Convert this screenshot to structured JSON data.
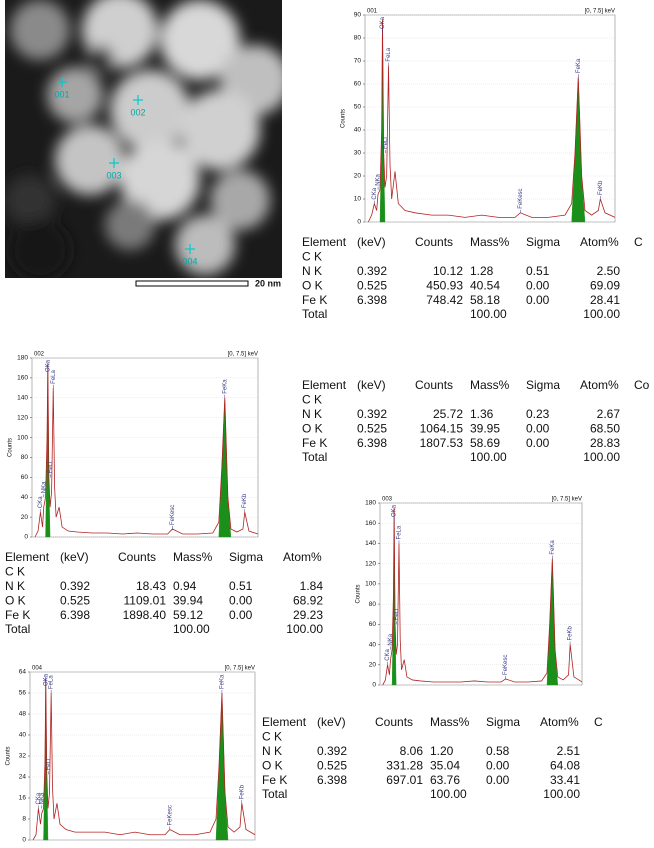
{
  "image": {
    "markers": [
      {
        "label": "001"
      },
      {
        "label": "002"
      },
      {
        "label": "003"
      },
      {
        "label": "004"
      }
    ],
    "scale_label": "20 nm"
  },
  "chart_data": [
    {
      "type": "line",
      "title": "001",
      "range_label": "[0, 7.5] keV",
      "y_label": "Counts",
      "xlim": [
        0,
        7.5
      ],
      "ylim": [
        0,
        90
      ],
      "yticks": [
        0,
        10,
        20,
        30,
        40,
        50,
        60,
        70,
        80,
        90
      ],
      "grid": true,
      "series": [
        {
          "color": "#1a8f1a",
          "fill": true,
          "x": [
            0.45,
            0.5,
            0.525,
            0.56,
            0.6,
            3.0,
            6.2,
            6.3,
            6.398,
            6.5,
            6.6
          ],
          "values": [
            0,
            40,
            88,
            30,
            0,
            null,
            0,
            30,
            63,
            20,
            0
          ]
        },
        {
          "color": "#b22222",
          "fill": false,
          "x": [
            0.1,
            0.2,
            0.28,
            0.35,
            0.39,
            0.45,
            0.5,
            0.525,
            0.56,
            0.6,
            0.65,
            0.705,
            0.75,
            0.8,
            0.9,
            1.0,
            1.2,
            1.5,
            2.0,
            2.5,
            3.0,
            3.5,
            4.0,
            4.5,
            4.66,
            5.0,
            5.5,
            6.0,
            6.2,
            6.3,
            6.398,
            6.5,
            6.6,
            6.8,
            7.0,
            7.06,
            7.2,
            7.5
          ],
          "values": [
            0,
            3,
            8,
            5,
            12,
            14,
            40,
            88,
            30,
            15,
            20,
            68,
            25,
            10,
            22,
            8,
            5,
            4,
            3,
            3,
            2,
            3,
            2,
            2,
            4,
            2,
            2,
            3,
            8,
            30,
            63,
            20,
            5,
            3,
            5,
            10,
            4,
            2
          ]
        }
      ],
      "annotations": [
        {
          "text": "CKa",
          "x": 0.277
        },
        {
          "text": "NKa",
          "x": 0.392
        },
        {
          "text": "OKa",
          "x": 0.525
        },
        {
          "text": "FeLl",
          "x": 0.615
        },
        {
          "text": "FeLa",
          "x": 0.705
        },
        {
          "text": "FeKesc",
          "x": 4.66
        },
        {
          "text": "FeKa",
          "x": 6.398
        },
        {
          "text": "FeKb",
          "x": 7.058
        }
      ]
    },
    {
      "type": "line",
      "title": "002",
      "range_label": "[0, 7.5] keV",
      "y_label": "Counts",
      "xlim": [
        0,
        7.5
      ],
      "ylim": [
        0,
        180
      ],
      "yticks": [
        0,
        20,
        40,
        60,
        80,
        100,
        120,
        140,
        160,
        180
      ],
      "grid": true,
      "series": [
        {
          "color": "#1a8f1a",
          "fill": true,
          "x": [
            0.45,
            0.5,
            0.525,
            0.56,
            0.6,
            3.0,
            6.2,
            6.3,
            6.398,
            6.5,
            6.6
          ],
          "values": [
            0,
            100,
            175,
            60,
            0,
            null,
            0,
            70,
            140,
            40,
            0
          ]
        },
        {
          "color": "#b22222",
          "fill": false,
          "x": [
            0.1,
            0.2,
            0.28,
            0.35,
            0.39,
            0.45,
            0.5,
            0.525,
            0.56,
            0.6,
            0.65,
            0.705,
            0.75,
            0.8,
            0.9,
            1.0,
            1.2,
            1.5,
            2.0,
            2.5,
            3.0,
            3.5,
            4.0,
            4.5,
            4.66,
            5.0,
            5.5,
            6.0,
            6.2,
            6.3,
            6.398,
            6.5,
            6.6,
            6.8,
            7.0,
            7.06,
            7.2,
            7.5
          ],
          "values": [
            0,
            6,
            25,
            10,
            30,
            40,
            100,
            175,
            60,
            30,
            45,
            150,
            50,
            20,
            30,
            10,
            6,
            5,
            4,
            4,
            3,
            4,
            3,
            3,
            8,
            3,
            3,
            4,
            15,
            70,
            140,
            40,
            8,
            5,
            8,
            25,
            6,
            3
          ]
        }
      ],
      "annotations": [
        {
          "text": "CKa",
          "x": 0.277
        },
        {
          "text": "NKa",
          "x": 0.392
        },
        {
          "text": "OKa",
          "x": 0.525
        },
        {
          "text": "FeLl",
          "x": 0.615
        },
        {
          "text": "FeLa",
          "x": 0.705
        },
        {
          "text": "FeKesc",
          "x": 4.66
        },
        {
          "text": "FeKa",
          "x": 6.398
        },
        {
          "text": "FeKb",
          "x": 7.058
        }
      ]
    },
    {
      "type": "line",
      "title": "003",
      "range_label": "[0, 7.5] keV",
      "y_label": "Counts",
      "xlim": [
        0,
        7.5
      ],
      "ylim": [
        0,
        180
      ],
      "yticks": [
        0,
        20,
        40,
        60,
        80,
        100,
        120,
        140,
        160,
        180
      ],
      "grid": true,
      "series": [
        {
          "color": "#1a8f1a",
          "fill": true,
          "x": [
            0.45,
            0.5,
            0.525,
            0.56,
            0.6,
            3.0,
            6.2,
            6.3,
            6.398,
            6.5,
            6.6
          ],
          "values": [
            0,
            90,
            175,
            60,
            0,
            null,
            0,
            60,
            125,
            35,
            0
          ]
        },
        {
          "color": "#b22222",
          "fill": false,
          "x": [
            0.1,
            0.2,
            0.28,
            0.35,
            0.39,
            0.45,
            0.5,
            0.525,
            0.56,
            0.6,
            0.65,
            0.705,
            0.75,
            0.8,
            0.9,
            1.0,
            1.2,
            1.5,
            2.0,
            2.5,
            3.0,
            3.5,
            4.0,
            4.5,
            4.66,
            5.0,
            5.5,
            6.0,
            6.2,
            6.3,
            6.398,
            6.5,
            6.6,
            6.8,
            7.0,
            7.06,
            7.2,
            7.5
          ],
          "values": [
            0,
            5,
            20,
            10,
            25,
            35,
            90,
            175,
            60,
            30,
            40,
            140,
            45,
            15,
            25,
            8,
            5,
            4,
            3,
            3,
            3,
            4,
            3,
            3,
            6,
            3,
            3,
            4,
            12,
            60,
            125,
            35,
            8,
            5,
            10,
            40,
            8,
            3
          ]
        }
      ],
      "annotations": [
        {
          "text": "CKa",
          "x": 0.277
        },
        {
          "text": "NKa",
          "x": 0.392
        },
        {
          "text": "OKa",
          "x": 0.525
        },
        {
          "text": "FeLl",
          "x": 0.615
        },
        {
          "text": "FeLa",
          "x": 0.705
        },
        {
          "text": "FeKesc",
          "x": 4.66
        },
        {
          "text": "FeKa",
          "x": 6.398
        },
        {
          "text": "FeKb",
          "x": 7.058
        }
      ]
    },
    {
      "type": "line",
      "title": "004",
      "range_label": "[0, 7.5] keV",
      "y_label": "Counts",
      "xlim": [
        0,
        7.5
      ],
      "ylim": [
        0,
        64
      ],
      "yticks": [
        0,
        8,
        16,
        24,
        32,
        40,
        48,
        56,
        64
      ],
      "grid": true,
      "series": [
        {
          "color": "#1a8f1a",
          "fill": true,
          "x": [
            0.45,
            0.5,
            0.525,
            0.56,
            0.6,
            3.0,
            6.2,
            6.3,
            6.398,
            6.5,
            6.6
          ],
          "values": [
            0,
            30,
            62,
            25,
            0,
            null,
            0,
            28,
            56,
            18,
            0
          ]
        },
        {
          "color": "#b22222",
          "fill": false,
          "x": [
            0.1,
            0.2,
            0.28,
            0.35,
            0.39,
            0.45,
            0.5,
            0.525,
            0.56,
            0.6,
            0.65,
            0.705,
            0.75,
            0.8,
            0.9,
            1.0,
            1.2,
            1.5,
            2.0,
            2.5,
            3.0,
            3.5,
            4.0,
            4.5,
            4.66,
            5.0,
            5.5,
            6.0,
            6.2,
            6.3,
            6.398,
            6.5,
            6.6,
            6.8,
            7.0,
            7.06,
            7.2,
            7.5
          ],
          "values": [
            0,
            2,
            12,
            6,
            10,
            12,
            30,
            62,
            25,
            12,
            18,
            56,
            20,
            8,
            14,
            6,
            4,
            3,
            3,
            3,
            2,
            3,
            2,
            2,
            4,
            2,
            2,
            3,
            8,
            28,
            56,
            18,
            5,
            3,
            5,
            14,
            4,
            2
          ]
        }
      ],
      "annotations": [
        {
          "text": "CKa",
          "x": 0.277
        },
        {
          "text": "NKa",
          "x": 0.392
        },
        {
          "text": "OKa",
          "x": 0.525
        },
        {
          "text": "FeLl",
          "x": 0.615
        },
        {
          "text": "FeLa",
          "x": 0.705
        },
        {
          "text": "FeKesc",
          "x": 4.66
        },
        {
          "text": "FeKa",
          "x": 6.398
        },
        {
          "text": "FeKb",
          "x": 7.058
        }
      ]
    }
  ],
  "tables": [
    {
      "header": [
        "Element",
        "(keV)",
        "Counts",
        "Mass%",
        "Sigma",
        "Atom%",
        "C"
      ],
      "rows": [
        [
          "C K"
        ],
        [
          "N K",
          "0.392",
          "10.12",
          "1.28",
          "0.51",
          "2.50"
        ],
        [
          "O K",
          "0.525",
          "450.93",
          "40.54",
          "0.00",
          "69.09"
        ],
        [
          "Fe K",
          "6.398",
          "748.42",
          "58.18",
          "0.00",
          "28.41"
        ],
        [
          "Total",
          null,
          null,
          "100.00",
          null,
          "100.00"
        ]
      ]
    },
    {
      "header": [
        "Element",
        "(keV)",
        "Counts",
        "Mass%",
        "Sigma",
        "Atom%",
        "Co"
      ],
      "rows": [
        [
          "C K"
        ],
        [
          "N K",
          "0.392",
          "25.72",
          "1.36",
          "0.23",
          "2.67"
        ],
        [
          "O K",
          "0.525",
          "1064.15",
          "39.95",
          "0.00",
          "68.50"
        ],
        [
          "Fe K",
          "6.398",
          "1807.53",
          "58.69",
          "0.00",
          "28.83"
        ],
        [
          "Total",
          null,
          null,
          "100.00",
          null,
          "100.00"
        ]
      ]
    },
    {
      "header": [
        "Element",
        "(keV)",
        "Counts",
        "Mass%",
        "Sigma",
        "Atom%"
      ],
      "rows": [
        [
          "C K"
        ],
        [
          "N K",
          "0.392",
          "18.43",
          "0.94",
          "0.51",
          "1.84"
        ],
        [
          "O K",
          "0.525",
          "1109.01",
          "39.94",
          "0.00",
          "68.92"
        ],
        [
          "Fe K",
          "6.398",
          "1898.40",
          "59.12",
          "0.00",
          "29.23"
        ],
        [
          "Total",
          null,
          null,
          "100.00",
          null,
          "100.00"
        ]
      ]
    },
    {
      "header": [
        "Element",
        "(keV)",
        "Counts",
        "Mass%",
        "Sigma",
        "Atom%",
        "C"
      ],
      "rows": [
        [
          "C K"
        ],
        [
          "N K",
          "0.392",
          "8.06",
          "1.20",
          "0.58",
          "2.51"
        ],
        [
          "O K",
          "0.525",
          "331.28",
          "35.04",
          "0.00",
          "64.08"
        ],
        [
          "Fe K",
          "6.398",
          "697.01",
          "63.76",
          "0.00",
          "33.41"
        ],
        [
          "Total",
          null,
          null,
          "100.00",
          null,
          "100.00"
        ]
      ]
    }
  ]
}
